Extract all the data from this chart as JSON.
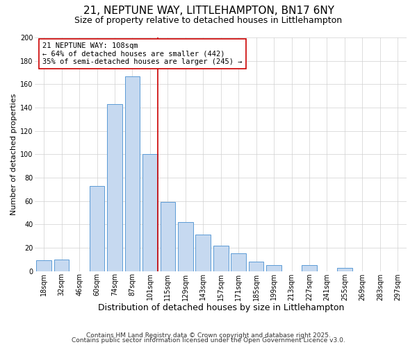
{
  "title": "21, NEPTUNE WAY, LITTLEHAMPTON, BN17 6NY",
  "subtitle": "Size of property relative to detached houses in Littlehampton",
  "xlabel": "Distribution of detached houses by size in Littlehampton",
  "ylabel": "Number of detached properties",
  "bar_labels": [
    "18sqm",
    "32sqm",
    "46sqm",
    "60sqm",
    "74sqm",
    "87sqm",
    "101sqm",
    "115sqm",
    "129sqm",
    "143sqm",
    "157sqm",
    "171sqm",
    "185sqm",
    "199sqm",
    "213sqm",
    "227sqm",
    "241sqm",
    "255sqm",
    "269sqm",
    "283sqm",
    "297sqm"
  ],
  "bar_values": [
    9,
    10,
    0,
    73,
    143,
    167,
    100,
    59,
    42,
    31,
    22,
    15,
    8,
    5,
    0,
    5,
    0,
    3,
    0,
    0,
    0
  ],
  "bar_color": "#c6d9f0",
  "bar_edge_color": "#5b9bd5",
  "annotation_line1": "21 NEPTUNE WAY: 108sqm",
  "annotation_line2": "← 64% of detached houses are smaller (442)",
  "annotation_line3": "35% of semi-detached houses are larger (245) →",
  "vline_color": "#cc0000",
  "vline_index": 6,
  "ylim": [
    0,
    200
  ],
  "yticks": [
    0,
    20,
    40,
    60,
    80,
    100,
    120,
    140,
    160,
    180,
    200
  ],
  "grid_color": "#d0d0d0",
  "background_color": "#ffffff",
  "footer1": "Contains HM Land Registry data © Crown copyright and database right 2025.",
  "footer2": "Contains public sector information licensed under the Open Government Licence v3.0.",
  "title_fontsize": 11,
  "subtitle_fontsize": 9,
  "xlabel_fontsize": 9,
  "ylabel_fontsize": 8,
  "tick_fontsize": 7,
  "annotation_fontsize": 7.5,
  "footer_fontsize": 6.5
}
